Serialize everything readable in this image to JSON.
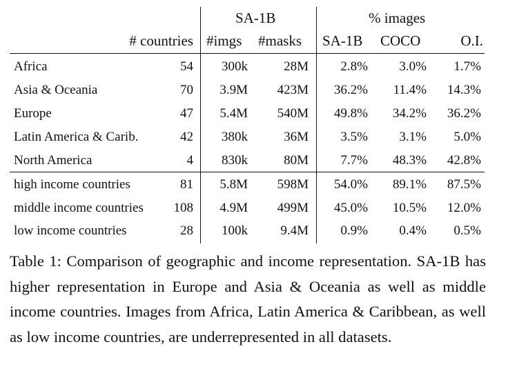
{
  "table": {
    "group_headers": {
      "sa1b": "SA-1B",
      "pct_images": "% images"
    },
    "column_headers": {
      "countries": "# countries",
      "imgs": "#imgs",
      "masks": "#masks",
      "sa1b": "SA-1B",
      "coco": "COCO",
      "oi": "O.I."
    },
    "rows": [
      {
        "label": "Africa",
        "countries": "54",
        "imgs": "300k",
        "masks": "28M",
        "sa1b": "2.8%",
        "coco": "3.0%",
        "oi": "1.7%"
      },
      {
        "label": "Asia & Oceania",
        "countries": "70",
        "imgs": "3.9M",
        "masks": "423M",
        "sa1b": "36.2%",
        "coco": "11.4%",
        "oi": "14.3%"
      },
      {
        "label": "Europe",
        "countries": "47",
        "imgs": "5.4M",
        "masks": "540M",
        "sa1b": "49.8%",
        "coco": "34.2%",
        "oi": "36.2%"
      },
      {
        "label": "Latin America & Carib.",
        "countries": "42",
        "imgs": "380k",
        "masks": "36M",
        "sa1b": "3.5%",
        "coco": "3.1%",
        "oi": "5.0%"
      },
      {
        "label": "North America",
        "countries": "4",
        "imgs": "830k",
        "masks": "80M",
        "sa1b": "7.7%",
        "coco": "48.3%",
        "oi": "42.8%"
      },
      {
        "label": "high income countries",
        "countries": "81",
        "imgs": "5.8M",
        "masks": "598M",
        "sa1b": "54.0%",
        "coco": "89.1%",
        "oi": "87.5%"
      },
      {
        "label": "middle income countries",
        "countries": "108",
        "imgs": "4.9M",
        "masks": "499M",
        "sa1b": "45.0%",
        "coco": "10.5%",
        "oi": "12.0%"
      },
      {
        "label": "low income countries",
        "countries": "28",
        "imgs": "100k",
        "masks": "9.4M",
        "sa1b": "0.9%",
        "coco": "0.4%",
        "oi": "0.5%"
      }
    ]
  },
  "caption": "Table 1: Comparison of geographic and income representation. SA-1B has higher representation in Europe and Asia & Oceania as well as middle income countries. Images from Africa, Latin America & Caribbean, as well as low income countries, are underrepresented in all datasets."
}
